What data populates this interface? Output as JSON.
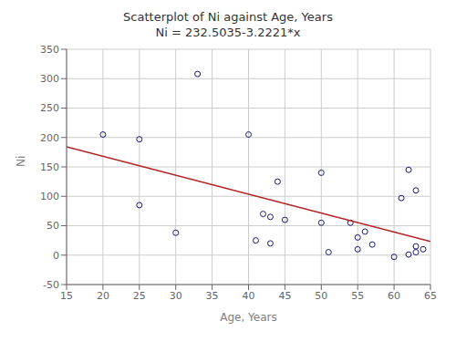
{
  "chart_data": {
    "type": "scatter",
    "title": "Scatterplot of Ni against Age, Years",
    "subtitle": "Ni = 232.5035-3.2221*x",
    "x_label": "Age, Years",
    "y_label": "Ni",
    "xlim": [
      15,
      65
    ],
    "ylim": [
      -50,
      350
    ],
    "xticks": [
      15,
      20,
      25,
      30,
      35,
      40,
      45,
      50,
      55,
      60,
      65
    ],
    "yticks": [
      -50,
      0,
      50,
      100,
      150,
      200,
      250,
      300,
      350
    ],
    "grid": true,
    "series": [
      {
        "type": "scatter",
        "marker": "circle",
        "color": "#191970",
        "x": [
          20,
          25,
          25,
          30,
          33,
          40,
          41,
          42,
          43,
          43,
          44,
          45,
          50,
          50,
          51,
          54,
          55,
          55,
          56,
          57,
          60,
          61,
          62,
          62,
          63,
          63,
          63,
          64
        ],
        "values": [
          205,
          197,
          85,
          38,
          308,
          205,
          25,
          70,
          65,
          20,
          125,
          60,
          55,
          140,
          5,
          55,
          30,
          10,
          40,
          18,
          -3,
          97,
          145,
          1,
          15,
          110,
          5,
          10
        ]
      },
      {
        "type": "line",
        "color": "#b22222",
        "x": [
          15,
          65
        ],
        "values": [
          184.172,
          23.067
        ]
      }
    ]
  }
}
